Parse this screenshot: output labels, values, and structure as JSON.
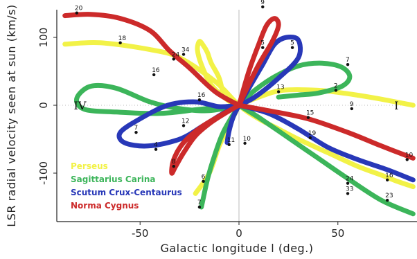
{
  "chart_data": {
    "type": "line",
    "title": "",
    "xlabel": "Galactic longitude l (deg.)",
    "ylabel": "LSR radial velocity seen at sun (km/s)",
    "xlim": [
      90,
      -90
    ],
    "ylim": [
      -160,
      160
    ],
    "x_ticks": [
      50,
      0,
      -50
    ],
    "x_tick_labels": [
      "-50",
      "0",
      "50"
    ],
    "y_ticks": [
      100,
      0,
      -100
    ],
    "y_tick_labels": [
      "100",
      "0",
      "-100"
    ],
    "grid": false,
    "reference_lines": {
      "x": 0,
      "y": 0
    },
    "legend_position": "bottom-left",
    "quadrant_labels": [
      {
        "text": "IV",
        "x": 80,
        "y": 0
      },
      {
        "text": "I",
        "x": -82,
        "y": 0
      }
    ],
    "series": [
      {
        "name": "Perseus",
        "color": "#f2f247",
        "points": [
          [
            88,
            90
          ],
          [
            70,
            92
          ],
          [
            45,
            82
          ],
          [
            30,
            70
          ],
          [
            12,
            35
          ],
          [
            0,
            0
          ],
          [
            -10,
            -20
          ],
          [
            -20,
            -35
          ],
          [
            -30,
            -50
          ],
          [
            -45,
            -70
          ],
          [
            -60,
            -90
          ],
          [
            -72,
            -103
          ],
          [
            -80,
            -112
          ],
          [
            -88,
            -120
          ]
        ],
        "loop": [
          [
            8,
            15
          ],
          [
            10,
            40
          ],
          [
            14,
            62
          ],
          [
            16,
            78
          ],
          [
            18,
            88
          ],
          [
            20,
            94
          ],
          [
            21,
            82
          ],
          [
            19,
            60
          ],
          [
            14,
            30
          ],
          [
            5,
            6
          ],
          [
            0,
            0
          ]
        ],
        "tail": [
          [
            0,
            0
          ],
          [
            -10,
            12
          ],
          [
            -22,
            22
          ],
          [
            -40,
            22
          ],
          [
            -55,
            17
          ],
          [
            -70,
            10
          ],
          [
            -88,
            0
          ]
        ],
        "branch": [
          [
            0,
            0
          ],
          [
            5,
            -30
          ],
          [
            10,
            -60
          ],
          [
            15,
            -100
          ],
          [
            22,
            -130
          ]
        ],
        "labels": [
          {
            "text": "18",
            "x": 60,
            "y": 92
          },
          {
            "text": "24",
            "x": 33,
            "y": 68
          },
          {
            "text": "13",
            "x": -20,
            "y": 20
          },
          {
            "text": "9",
            "x": -57,
            "y": -5
          },
          {
            "text": "11",
            "x": 5,
            "y": -58
          },
          {
            "text": "33",
            "x": -55,
            "y": -130
          }
        ]
      },
      {
        "name": "Sagittarius Carina",
        "color": "#3cb55a",
        "points": [
          [
            0,
            0
          ],
          [
            15,
            -8
          ],
          [
            30,
            -5
          ],
          [
            45,
            5
          ],
          [
            62,
            25
          ],
          [
            75,
            28
          ],
          [
            82,
            10
          ],
          [
            78,
            -6
          ],
          [
            62,
            -10
          ],
          [
            40,
            -12
          ],
          [
            20,
            -6
          ],
          [
            0,
            0
          ]
        ],
        "loop": [
          [
            0,
            0
          ],
          [
            -8,
            22
          ],
          [
            -18,
            42
          ],
          [
            -30,
            58
          ],
          [
            -42,
            62
          ],
          [
            -52,
            56
          ],
          [
            -56,
            42
          ],
          [
            -52,
            28
          ],
          [
            -40,
            18
          ],
          [
            -30,
            15
          ],
          [
            -20,
            12
          ]
        ],
        "tail": [
          [
            0,
            0
          ],
          [
            -10,
            -18
          ],
          [
            -25,
            -48
          ],
          [
            -40,
            -78
          ],
          [
            -55,
            -108
          ],
          [
            -72,
            -140
          ],
          [
            -88,
            -160
          ]
        ],
        "branch": [
          [
            0,
            0
          ],
          [
            8,
            -40
          ],
          [
            13,
            -80
          ],
          [
            16,
            -110
          ],
          [
            19,
            -150
          ]
        ],
        "labels": [
          {
            "text": "16",
            "x": 43,
            "y": 45
          },
          {
            "text": "7",
            "x": -55,
            "y": 60
          },
          {
            "text": "2",
            "x": -49,
            "y": 22
          },
          {
            "text": "6",
            "x": 18,
            "y": -112
          },
          {
            "text": "7",
            "x": 20,
            "y": -150
          },
          {
            "text": "24",
            "x": -55,
            "y": -115
          },
          {
            "text": "23",
            "x": -75,
            "y": -140
          }
        ]
      },
      {
        "name": "Scutum Crux-Centaurus",
        "color": "#2838b8",
        "points": [
          [
            0,
            0
          ],
          [
            -6,
            30
          ],
          [
            -12,
            60
          ],
          [
            -18,
            90
          ],
          [
            -24,
            100
          ],
          [
            -30,
            96
          ],
          [
            -30,
            70
          ],
          [
            -20,
            40
          ],
          [
            -8,
            12
          ],
          [
            0,
            0
          ]
        ],
        "loop": [
          [
            0,
            0
          ],
          [
            10,
            -2
          ],
          [
            22,
            5
          ],
          [
            36,
            0
          ],
          [
            50,
            -20
          ],
          [
            60,
            -40
          ],
          [
            58,
            -55
          ],
          [
            46,
            -60
          ],
          [
            30,
            -50
          ],
          [
            18,
            -30
          ],
          [
            8,
            -12
          ],
          [
            0,
            0
          ]
        ],
        "tail": [
          [
            0,
            0
          ],
          [
            -15,
            -12
          ],
          [
            -30,
            -35
          ],
          [
            -45,
            -62
          ],
          [
            -60,
            -80
          ],
          [
            -75,
            -95
          ],
          [
            -88,
            -110
          ]
        ],
        "branch": [
          [
            0,
            0
          ],
          [
            3,
            -18
          ],
          [
            5,
            -38
          ],
          [
            6,
            -55
          ]
        ],
        "labels": [
          {
            "text": "16",
            "x": 20,
            "y": 8
          },
          {
            "text": "7",
            "x": 52,
            "y": -40
          },
          {
            "text": "4",
            "x": 42,
            "y": -65
          },
          {
            "text": "19",
            "x": -36,
            "y": -48
          },
          {
            "text": "16",
            "x": -75,
            "y": -110
          },
          {
            "text": "5",
            "x": -27,
            "y": 85
          },
          {
            "text": "10",
            "x": -3,
            "y": -56
          }
        ]
      },
      {
        "name": "Norma Cygnus",
        "color": "#cc2a2a",
        "points": [
          [
            88,
            132
          ],
          [
            75,
            134
          ],
          [
            60,
            128
          ],
          [
            45,
            110
          ],
          [
            35,
            80
          ],
          [
            25,
            55
          ],
          [
            12,
            20
          ],
          [
            0,
            0
          ]
        ],
        "loop": [
          [
            0,
            0
          ],
          [
            -5,
            50
          ],
          [
            -10,
            90
          ],
          [
            -14,
            118
          ],
          [
            -18,
            128
          ],
          [
            -20,
            118
          ],
          [
            -17,
            95
          ],
          [
            -10,
            60
          ],
          [
            -4,
            25
          ],
          [
            0,
            0
          ]
        ],
        "tail": [
          [
            0,
            0
          ],
          [
            -15,
            -8
          ],
          [
            -35,
            -20
          ],
          [
            -55,
            -40
          ],
          [
            -72,
            -60
          ],
          [
            -88,
            -78
          ]
        ],
        "branch": [
          [
            0,
            0
          ],
          [
            6,
            -10
          ],
          [
            14,
            -25
          ],
          [
            22,
            -45
          ],
          [
            28,
            -70
          ],
          [
            32,
            -90
          ],
          [
            34,
            -100
          ],
          [
            33,
            -80
          ],
          [
            28,
            -55
          ],
          [
            18,
            -30
          ],
          [
            0,
            0
          ]
        ],
        "labels": [
          {
            "text": "20",
            "x": 82,
            "y": 136
          },
          {
            "text": "34",
            "x": 28,
            "y": 75
          },
          {
            "text": "12",
            "x": 28,
            "y": -30
          },
          {
            "text": "8",
            "x": 33,
            "y": -90
          },
          {
            "text": "15",
            "x": -35,
            "y": -18
          },
          {
            "text": "10",
            "x": -85,
            "y": -80
          },
          {
            "text": "9",
            "x": -12,
            "y": 145
          },
          {
            "text": "5",
            "x": -12,
            "y": 85
          }
        ]
      }
    ],
    "legend": [
      "Perseus",
      "Sagittarius Carina",
      "Scutum Crux-Centaurus",
      "Norma Cygnus"
    ]
  }
}
